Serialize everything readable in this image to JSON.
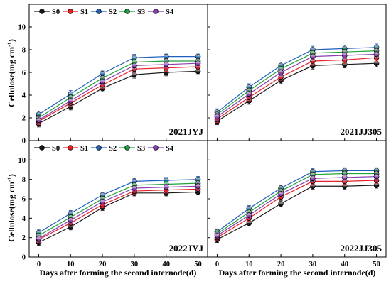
{
  "chart_data": {
    "type": "line",
    "x": [
      0,
      10,
      20,
      30,
      40,
      50
    ],
    "xlabel": "Days after forming the second internode(d)",
    "ylabel": "Cellulose(mg cm",
    "ylabel_sup": "-1",
    "ylabel_close": ")",
    "xlim": [
      -3,
      53
    ],
    "ylim": [
      0,
      12
    ],
    "xticks": [
      0,
      10,
      20,
      30,
      40,
      50
    ],
    "yticks": [
      0,
      2,
      4,
      6,
      8,
      10
    ],
    "legend": [
      "S0",
      "S1",
      "S2",
      "S3",
      "S4"
    ],
    "colors": {
      "S0": "#1a1a1a",
      "S1": "#e8202a",
      "S2": "#1f5fbf",
      "S3": "#1ea23a",
      "S4": "#8a3fb3"
    },
    "panels": [
      {
        "label": "2021JYJ",
        "series": [
          {
            "name": "S0",
            "values": [
              1.5,
              3.0,
              4.6,
              5.8,
              6.0,
              6.1
            ]
          },
          {
            "name": "S1",
            "values": [
              1.7,
              3.3,
              4.9,
              6.3,
              6.4,
              6.5
            ]
          },
          {
            "name": "S2",
            "values": [
              2.3,
              4.1,
              5.9,
              7.3,
              7.4,
              7.4
            ]
          },
          {
            "name": "S3",
            "values": [
              2.0,
              3.8,
              5.5,
              6.9,
              7.0,
              7.0
            ]
          },
          {
            "name": "S4",
            "values": [
              1.8,
              3.5,
              5.2,
              6.6,
              6.7,
              6.8
            ]
          }
        ]
      },
      {
        "label": "2021JJ305",
        "series": [
          {
            "name": "S0",
            "values": [
              1.7,
              3.5,
              5.3,
              6.6,
              6.7,
              6.8
            ]
          },
          {
            "name": "S1",
            "values": [
              1.9,
              3.8,
              5.6,
              7.0,
              7.1,
              7.3
            ]
          },
          {
            "name": "S2",
            "values": [
              2.5,
              4.7,
              6.6,
              8.0,
              8.1,
              8.2
            ]
          },
          {
            "name": "S3",
            "values": [
              2.3,
              4.4,
              6.3,
              7.7,
              7.8,
              7.9
            ]
          },
          {
            "name": "S4",
            "values": [
              2.1,
              4.1,
              6.0,
              7.4,
              7.5,
              7.6
            ]
          }
        ]
      },
      {
        "label": "2022JYJ",
        "series": [
          {
            "name": "S0",
            "values": [
              1.5,
              3.1,
              5.1,
              6.6,
              6.6,
              6.7
            ]
          },
          {
            "name": "S1",
            "values": [
              1.8,
              3.5,
              5.4,
              6.8,
              6.9,
              7.0
            ]
          },
          {
            "name": "S2",
            "values": [
              2.5,
              4.5,
              6.4,
              7.8,
              7.9,
              8.0
            ]
          },
          {
            "name": "S3",
            "values": [
              2.2,
              4.1,
              6.0,
              7.4,
              7.5,
              7.6
            ]
          },
          {
            "name": "S4",
            "values": [
              1.9,
              3.8,
              5.7,
              7.1,
              7.2,
              7.3
            ]
          }
        ]
      },
      {
        "label": "2022JJ305",
        "series": [
          {
            "name": "S0",
            "values": [
              1.8,
              3.5,
              5.5,
              7.3,
              7.3,
              7.4
            ]
          },
          {
            "name": "S1",
            "values": [
              2.0,
              4.0,
              6.2,
              7.8,
              7.8,
              7.9
            ]
          },
          {
            "name": "S2",
            "values": [
              2.6,
              5.0,
              7.1,
              8.8,
              8.9,
              8.9
            ]
          },
          {
            "name": "S3",
            "values": [
              2.4,
              4.6,
              6.8,
              8.5,
              8.6,
              8.6
            ]
          },
          {
            "name": "S4",
            "values": [
              2.2,
              4.3,
              6.5,
              8.1,
              8.2,
              8.3
            ]
          }
        ]
      }
    ],
    "error_bar": 0.3,
    "grid": false,
    "legend_placement": "top-left"
  }
}
